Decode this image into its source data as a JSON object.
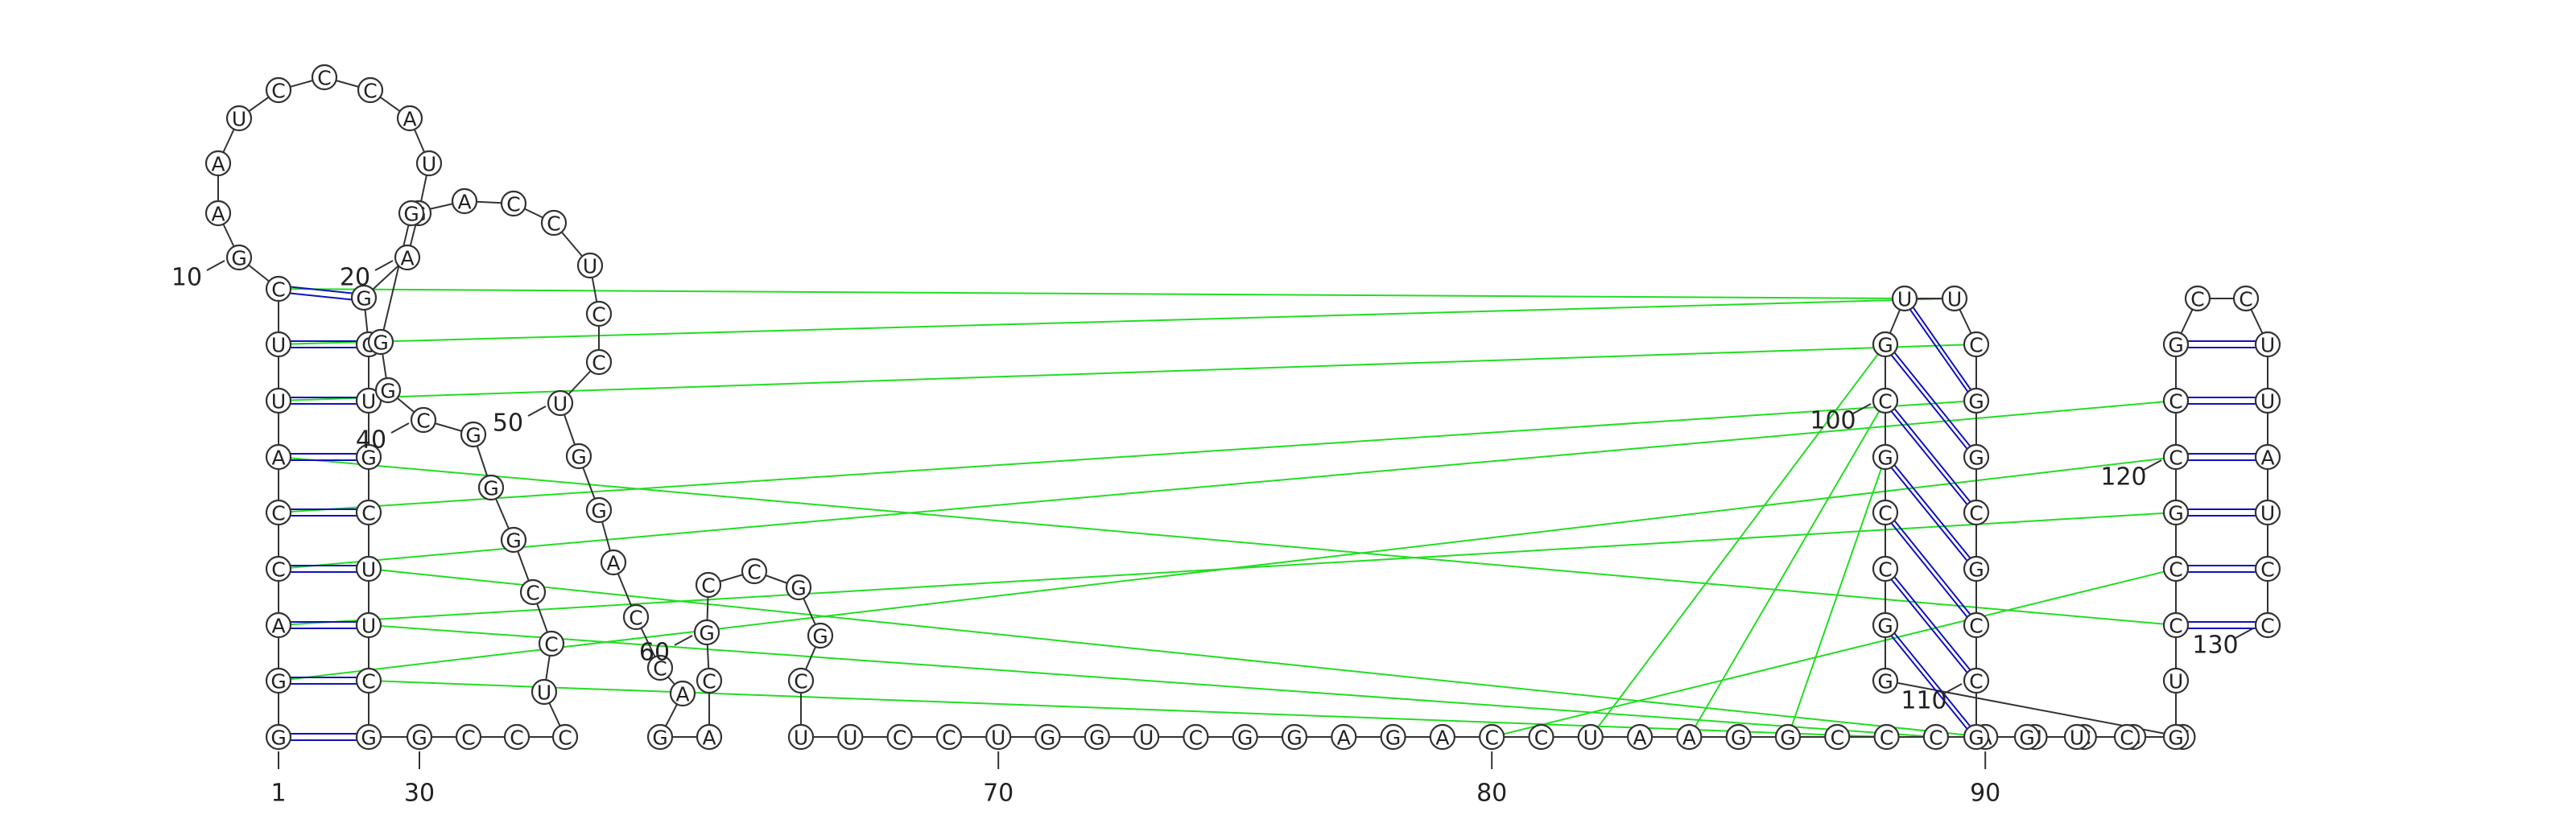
{
  "diagram": {
    "sequence": "GGACCAUUCGAAUCCCAUGAGCUGCUUCGGCCCUCCGGGCGGGACCUCCUGGACCAGACGCCGGCUUCCUGGUCGGAGACCUAAGGCCCAUCGUGGCCGCGUUCGGCGCCGGUCGUCCGCCGCCUUAUCC",
    "colors": {
      "backbone": "#333333",
      "canonical_pair": "#1010c0",
      "tertiary_interaction": "#22dd22"
    },
    "position_labels": [
      "1",
      "10",
      "20",
      "30",
      "40",
      "50",
      "60",
      "70",
      "80",
      "90",
      "100",
      "110",
      "120",
      "130"
    ]
  }
}
